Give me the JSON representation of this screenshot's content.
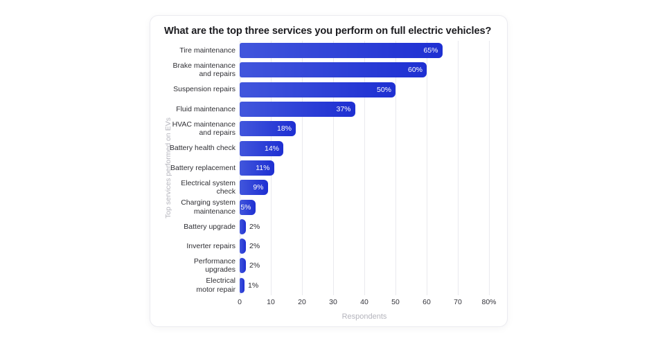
{
  "card": {
    "title": "What are the top three services you perform on full electric vehicles?"
  },
  "chart_data": {
    "type": "bar",
    "orientation": "horizontal",
    "title": "What are the top three services you perform on full electric vehicles?",
    "categories": [
      "Tire maintenance",
      "Brake maintenance\nand repairs",
      "Suspension repairs",
      "Fluid maintenance",
      "HVAC maintenance\nand repairs",
      "Battery health check",
      "Battery replacement",
      "Electrical system check",
      "Charging system\nmaintenance",
      "Battery upgrade",
      "Inverter repairs",
      "Performance\nupgrades",
      "Electrical\nmotor repair"
    ],
    "values": [
      65,
      60,
      50,
      37,
      18,
      14,
      11,
      9,
      5,
      2,
      2,
      2,
      1
    ],
    "value_labels": [
      "65%",
      "60%",
      "50%",
      "37%",
      "18%",
      "14%",
      "11%",
      "9%",
      "5%",
      "2%",
      "2%",
      "2%",
      "1%"
    ],
    "xlabel": "Respondents",
    "ylabel": "Top services performed on EVs",
    "xlim": [
      0,
      80
    ],
    "xticks": [
      0,
      10,
      20,
      30,
      40,
      50,
      60,
      70,
      80
    ],
    "xtick_labels": [
      "0",
      "10",
      "20",
      "30",
      "40",
      "50",
      "60",
      "70",
      "80%"
    ],
    "grid": "vertical",
    "legend": "none",
    "inside_label_min_value": 5,
    "colors": {
      "bar_gradient_start": "#4156dc",
      "bar_gradient_end": "#1e2fd2",
      "inside_value_label": "#ffffff",
      "outside_value_label": "#2b2b30",
      "gridline": "#e9e9ee",
      "axis_text": "#33333a",
      "muted_text": "#b4b4bc",
      "title_text": "#1b1b1f",
      "card_border": "#ebebf0",
      "background": "#ffffff"
    }
  }
}
